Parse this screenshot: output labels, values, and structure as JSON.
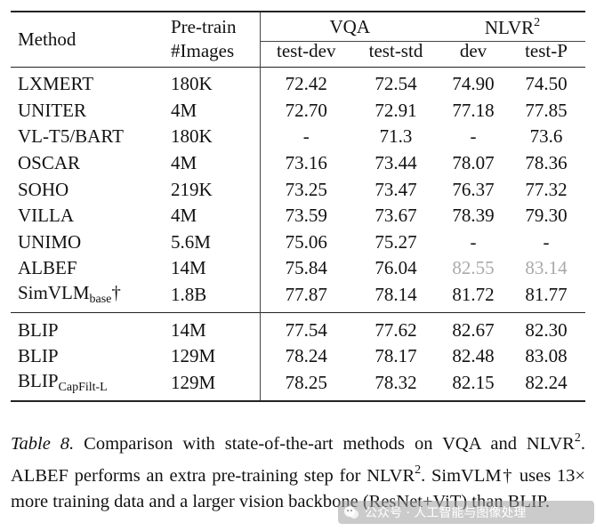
{
  "table": {
    "header": {
      "method": "Method",
      "pretrain_line1": "Pre-train",
      "pretrain_line2": "#Images",
      "vqa": "VQA",
      "nlvr_base": "NLVR",
      "nlvr_sup": "2",
      "vqa_test_dev": "test-dev",
      "vqa_test_std": "test-std",
      "nlvr_dev": "dev",
      "nlvr_test_p": "test-P"
    },
    "rows": [
      {
        "method": "LXMERT",
        "images": "180K",
        "vqa_dev": "72.42",
        "vqa_std": "72.54",
        "nlvr_dev": "74.90",
        "nlvr_testp": "74.50"
      },
      {
        "method": "UNITER",
        "images": "4M",
        "vqa_dev": "72.70",
        "vqa_std": "72.91",
        "nlvr_dev": "77.18",
        "nlvr_testp": "77.85"
      },
      {
        "method": "VL-T5/BART",
        "images": "180K",
        "vqa_dev": "-",
        "vqa_std": "71.3",
        "nlvr_dev": "-",
        "nlvr_testp": "73.6"
      },
      {
        "method": "OSCAR",
        "images": "4M",
        "vqa_dev": "73.16",
        "vqa_std": "73.44",
        "nlvr_dev": "78.07",
        "nlvr_testp": "78.36"
      },
      {
        "method": "SOHO",
        "images": "219K",
        "vqa_dev": "73.25",
        "vqa_std": "73.47",
        "nlvr_dev": "76.37",
        "nlvr_testp": "77.32"
      },
      {
        "method": "VILLA",
        "images": "4M",
        "vqa_dev": "73.59",
        "vqa_std": "73.67",
        "nlvr_dev": "78.39",
        "nlvr_testp": "79.30"
      },
      {
        "method": "UNIMO",
        "images": "5.6M",
        "vqa_dev": "75.06",
        "vqa_std": "75.27",
        "nlvr_dev": "-",
        "nlvr_testp": "-"
      },
      {
        "method": "ALBEF",
        "images": "14M",
        "vqa_dev": "75.84",
        "vqa_std": "76.04",
        "nlvr_dev": "82.55",
        "nlvr_testp": "83.14"
      },
      {
        "method_base": "SimVLM",
        "method_sub": "base",
        "method_suffix": "†",
        "images": "1.8B",
        "vqa_dev": "77.87",
        "vqa_std": "78.14",
        "nlvr_dev": "81.72",
        "nlvr_testp": "81.77"
      }
    ],
    "blip_rows": [
      {
        "method": "BLIP",
        "images": "14M",
        "vqa_dev": "77.54",
        "vqa_std": "77.62",
        "nlvr_dev": "82.67",
        "nlvr_testp": "82.30"
      },
      {
        "method": "BLIP",
        "images": "129M",
        "vqa_dev": "78.24",
        "vqa_std": "78.17",
        "nlvr_dev": "82.48",
        "nlvr_testp": "83.08"
      },
      {
        "method_base": "BLIP",
        "method_sub": "CapFilt-L",
        "images": "129M",
        "vqa_dev": "78.25",
        "vqa_std": "78.32",
        "nlvr_dev": "82.15",
        "nlvr_testp": "82.24"
      }
    ]
  },
  "caption": {
    "label": "Table 8.",
    "s1a": " Comparison with state-of-the-art methods on VQA and NLVR",
    "s1sup": "2",
    "s1b": ". ALBEF performs an extra pre-training step for NLVR",
    "s1sup2": "2",
    "s1c": ". SimVLM† uses 13× more training data and a larger vision backbone (ResNet+ViT) than BLIP."
  },
  "watermark": {
    "text": "公众号 · 人工智能与图像处理"
  },
  "colors": {
    "text": "#111111",
    "gray_value": "#a9a9a9"
  }
}
